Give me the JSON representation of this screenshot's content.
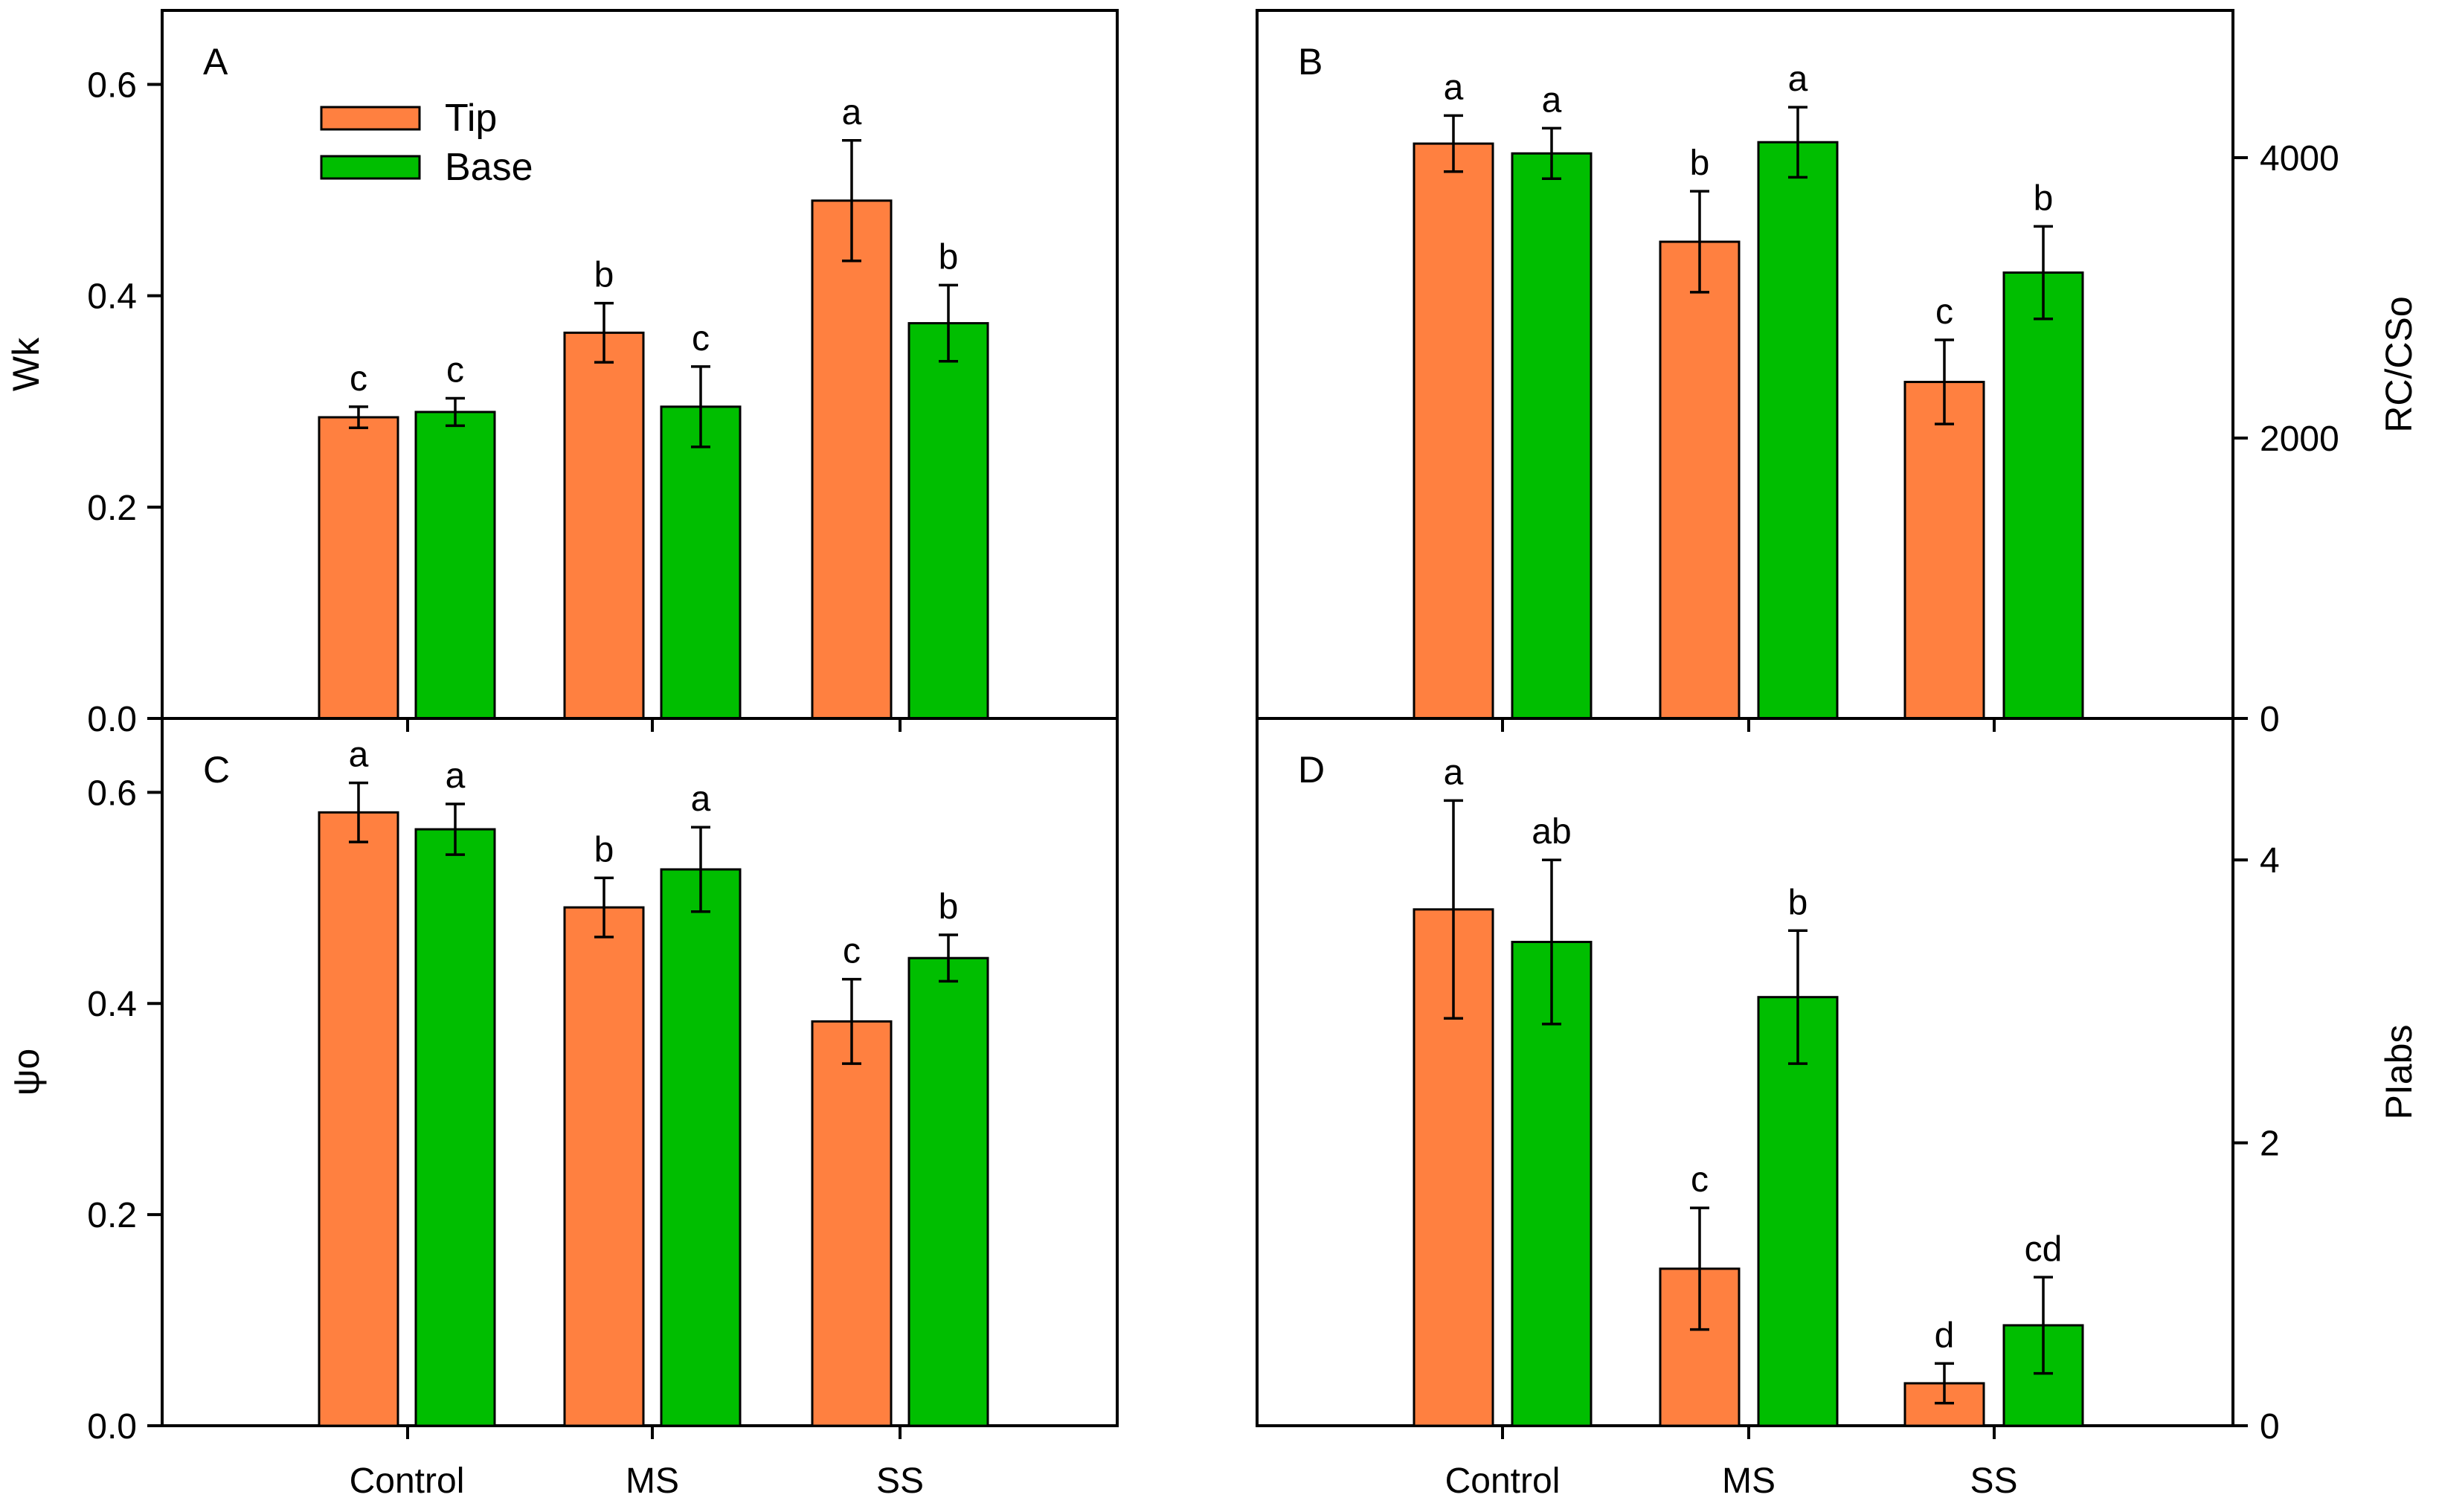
{
  "colors": {
    "tip": "#FF8040",
    "base": "#00BE00"
  },
  "legend": {
    "tip_label": "Tip",
    "base_label": "Base"
  },
  "chart_data": [
    {
      "panel": "A",
      "type": "bar",
      "ylabel": "Wk",
      "ylim": [
        0,
        0.67
      ],
      "yticks": [
        0.0,
        0.2,
        0.4,
        0.6
      ],
      "tick_labels": [
        "0.0",
        "0.2",
        "0.4",
        "0.6"
      ],
      "axis_side": "left",
      "categories": [
        "Control",
        "MS",
        "SS"
      ],
      "series": [
        {
          "name": "Tip",
          "values": [
            0.285,
            0.365,
            0.49
          ],
          "errors": [
            0.01,
            0.028,
            0.057
          ],
          "letters": [
            "c",
            "b",
            "a"
          ]
        },
        {
          "name": "Base",
          "values": [
            0.29,
            0.295,
            0.374
          ],
          "errors": [
            0.013,
            0.038,
            0.036
          ],
          "letters": [
            "c",
            "c",
            "b"
          ]
        }
      ]
    },
    {
      "panel": "B",
      "type": "bar",
      "ylabel": "RC/CSo",
      "ylim": [
        0,
        5050
      ],
      "yticks": [
        0,
        2000,
        4000
      ],
      "tick_labels": [
        "0",
        "2000",
        "4000"
      ],
      "axis_side": "right",
      "categories": [
        "Control",
        "MS",
        "SS"
      ],
      "series": [
        {
          "name": "Tip",
          "values": [
            4100,
            3400,
            2400
          ],
          "errors": [
            200,
            360,
            300
          ],
          "letters": [
            "a",
            "b",
            "c"
          ]
        },
        {
          "name": "Base",
          "values": [
            4030,
            4110,
            3180
          ],
          "errors": [
            180,
            250,
            330
          ],
          "letters": [
            "a",
            "a",
            "b"
          ]
        }
      ]
    },
    {
      "panel": "C",
      "type": "bar",
      "ylabel": "ψo",
      "ylim": [
        0,
        0.67
      ],
      "yticks": [
        0.0,
        0.2,
        0.4,
        0.6
      ],
      "tick_labels": [
        "0.0",
        "0.2",
        "0.4",
        "0.6"
      ],
      "axis_side": "left",
      "categories": [
        "Control",
        "MS",
        "SS"
      ],
      "series": [
        {
          "name": "Tip",
          "values": [
            0.581,
            0.491,
            0.383
          ],
          "errors": [
            0.028,
            0.028,
            0.04
          ],
          "letters": [
            "a",
            "b",
            "c"
          ]
        },
        {
          "name": "Base",
          "values": [
            0.565,
            0.527,
            0.443
          ],
          "errors": [
            0.024,
            0.04,
            0.022
          ],
          "letters": [
            "a",
            "a",
            "b"
          ]
        }
      ]
    },
    {
      "panel": "D",
      "type": "bar",
      "ylabel": "PIabs",
      "ylim": [
        0,
        5.0
      ],
      "yticks": [
        0,
        2,
        4
      ],
      "tick_labels": [
        "0",
        "2",
        "4"
      ],
      "axis_side": "right",
      "categories": [
        "Control",
        "MS",
        "SS"
      ],
      "series": [
        {
          "name": "Tip",
          "values": [
            3.65,
            1.11,
            0.3
          ],
          "errors": [
            0.77,
            0.43,
            0.14
          ],
          "letters": [
            "a",
            "c",
            "d"
          ]
        },
        {
          "name": "Base",
          "values": [
            3.42,
            3.03,
            0.71
          ],
          "errors": [
            0.58,
            0.47,
            0.34
          ],
          "letters": [
            "ab",
            "b",
            "cd"
          ]
        }
      ]
    }
  ]
}
